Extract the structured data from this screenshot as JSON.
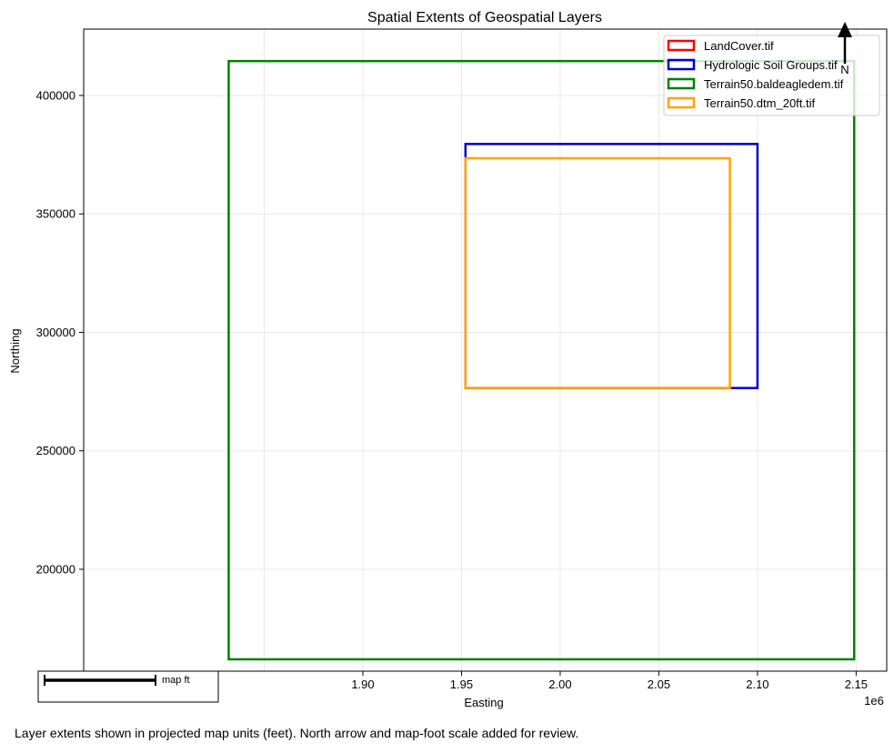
{
  "chart_data": {
    "type": "rectangle-extents",
    "title": "Spatial Extents of Geospatial Layers",
    "xlabel": "Easting",
    "ylabel": "Northing",
    "x_offset_label": "1e6",
    "xlim": [
      1758500.0,
      2165500.0
    ],
    "ylim": [
      157000,
      428000
    ],
    "x_ticks": [
      1900000.0,
      1950000.0,
      2000000.0,
      2050000.0,
      2100000.0,
      2150000.0
    ],
    "x_tick_labels": [
      "1.90",
      "1.95",
      "2.00",
      "2.05",
      "2.10",
      "2.15"
    ],
    "y_ticks": [
      200000,
      250000,
      300000,
      350000,
      400000
    ],
    "y_tick_labels": [
      "200000",
      "250000",
      "300000",
      "350000",
      "400000"
    ],
    "grid": true,
    "legend_position": "top-right",
    "layers": [
      {
        "name": "LandCover.tif",
        "color": "#ff0000",
        "x0": 1758500.0,
        "x1": 1758500.0,
        "y0": 157000,
        "y1": 157000,
        "drawn": false
      },
      {
        "name": "Hydrologic Soil Groups.tif",
        "color": "#0000cd",
        "x0": 1952000.0,
        "x1": 2100000.0,
        "y0": 276500,
        "y1": 379500,
        "drawn": true
      },
      {
        "name": "Terrain50.baldeagledem.tif",
        "color": "#008000",
        "x0": 1832000.0,
        "x1": 2149000.0,
        "y0": 162000,
        "y1": 414500,
        "drawn": true
      },
      {
        "name": "Terrain50.dtm_20ft.tif",
        "color": "#ffa500",
        "x0": 1952000.0,
        "x1": 2086000.0,
        "y0": 276500,
        "y1": 373500,
        "drawn": true
      }
    ],
    "north_arrow_label": "N",
    "scale_bar_label": "map ft"
  },
  "caption": "Layer extents shown in projected map units (feet). North arrow and map-foot scale added for review."
}
